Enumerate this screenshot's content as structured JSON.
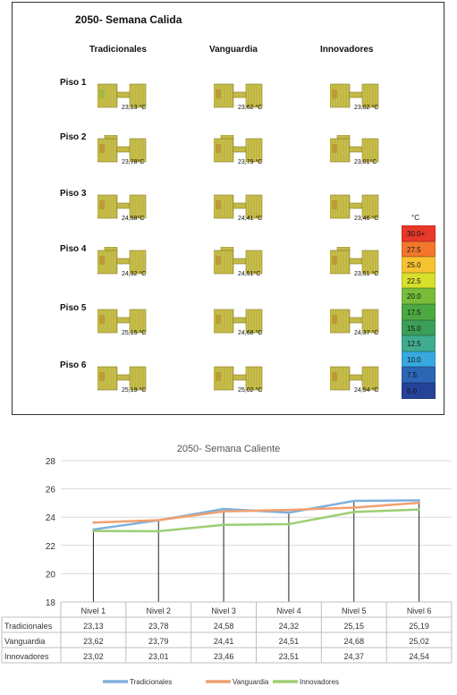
{
  "heatmap_panel": {
    "title": "2050- Semana Calida",
    "columns": [
      "Tradicionales",
      "Vanguardia",
      "Innovadores"
    ],
    "rows": [
      {
        "label": "Piso 1",
        "temps": [
          "23,13 °C",
          "23,62 °C",
          "23,02 °C"
        ]
      },
      {
        "label": "Piso 2",
        "temps": [
          "23,78°C",
          "23,79 °C",
          "23,01°C"
        ]
      },
      {
        "label": "Piso 3",
        "temps": [
          "24,58°C",
          "24,41 °C",
          "23,46 °C"
        ]
      },
      {
        "label": "Piso 4",
        "temps": [
          "24,32 °C",
          "24,51°C",
          "23,51 °C"
        ]
      },
      {
        "label": "Piso 5",
        "temps": [
          "25,15 °C",
          "24,68 °C",
          "24,37 °C"
        ]
      },
      {
        "label": "Piso 6",
        "temps": [
          "25,19 °C",
          "25,02 °C",
          "24,54 °C"
        ]
      }
    ],
    "color_scale": {
      "unit": "°C",
      "steps": [
        {
          "label": "30.0+",
          "color": "#e8382a"
        },
        {
          "label": "27.5",
          "color": "#f2772c"
        },
        {
          "label": "25.0",
          "color": "#f7c431"
        },
        {
          "label": "22.5",
          "color": "#d8df2c"
        },
        {
          "label": "20.0",
          "color": "#79bc3a"
        },
        {
          "label": "17.5",
          "color": "#4ca843"
        },
        {
          "label": "15.0",
          "color": "#3c9f57"
        },
        {
          "label": "12.5",
          "color": "#40ab8e"
        },
        {
          "label": "10.0",
          "color": "#37a9df"
        },
        {
          "label": "7.5",
          "color": "#2b67b5"
        },
        {
          "label": "5.0",
          "color": "#26439a"
        }
      ]
    },
    "plan_colors": {
      "fill": "#c9c14a",
      "grid": "#8a7d2c",
      "hot": "#b8872c",
      "cool": "#8fb83d"
    }
  },
  "chart_data": {
    "type": "line",
    "title": "2050- Semana Caliente",
    "categories": [
      "Nivel 1",
      "Nivel 2",
      "Nivel 3",
      "Nivel 4",
      "Nivel 5",
      "Nivel 6"
    ],
    "ylim": [
      18,
      28
    ],
    "yticks": [
      18,
      20,
      22,
      24,
      26,
      28
    ],
    "grid": true,
    "legend_position": "bottom",
    "series": [
      {
        "name": "Tradicionales",
        "color": "#7fb0de",
        "values": [
          23.13,
          23.78,
          24.58,
          24.32,
          25.15,
          25.19
        ],
        "labels": [
          "23,13",
          "23,78",
          "24,58",
          "24,32",
          "25,15",
          "25,19"
        ]
      },
      {
        "name": "Vanguardia",
        "color": "#f0a070",
        "values": [
          23.62,
          23.79,
          24.41,
          24.51,
          24.68,
          25.02
        ],
        "labels": [
          "23,62",
          "23,79",
          "24,41",
          "24,51",
          "24,68",
          "25,02"
        ]
      },
      {
        "name": "Innovadores",
        "color": "#9ccf73",
        "values": [
          23.02,
          23.01,
          23.46,
          23.51,
          24.37,
          24.54
        ],
        "labels": [
          "23,02",
          "23,01",
          "23,46",
          "23,51",
          "24,37",
          "24,54"
        ]
      }
    ]
  }
}
